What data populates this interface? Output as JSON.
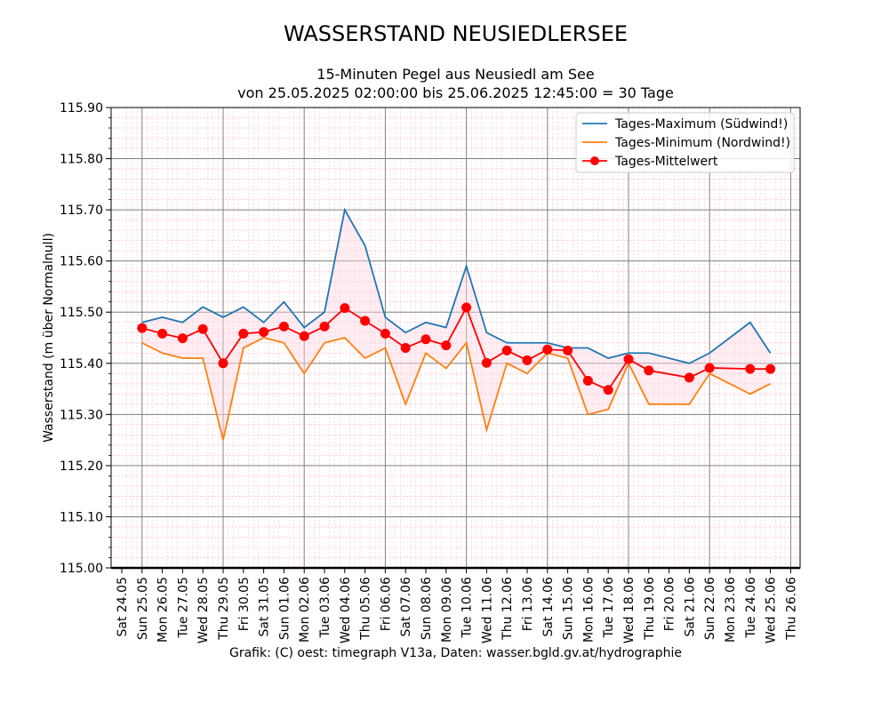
{
  "chart_data": {
    "type": "line",
    "title": "WASSERSTAND NEUSIEDLERSEE",
    "subtitle_line1": "15-Minuten Pegel aus Neusiedl am See",
    "subtitle_line2": "von 25.05.2025 02:00:00  bis 25.06.2025 12:45:00 =  30 Tage",
    "ylabel": "Wasserstand (m über Normalnull)",
    "credit": "Grafik: (C) oest: timegraph V13a,  Daten: wasser.bgld.gv.at/hydrographie",
    "ylim": [
      115.0,
      115.9
    ],
    "y_ticks": [
      "115.00",
      "115.10",
      "115.20",
      "115.30",
      "115.40",
      "115.50",
      "115.60",
      "115.70",
      "115.80",
      "115.90"
    ],
    "x_tick_labels": [
      "Sat 24.05",
      "Sun 25.05",
      "Mon 26.05",
      "Tue 27.05",
      "Wed 28.05",
      "Thu 29.05",
      "Fri 30.05",
      "Sat 31.05",
      "Sun 01.06",
      "Mon 02.06",
      "Tue 03.06",
      "Wed 04.06",
      "Thu 05.06",
      "Fri 06.06",
      "Sat 07.06",
      "Sun 08.06",
      "Mon 09.06",
      "Tue 10.06",
      "Wed 11.06",
      "Thu 12.06",
      "Fri 13.06",
      "Sat 14.06",
      "Sun 15.06",
      "Mon 16.06",
      "Tue 17.06",
      "Wed 18.06",
      "Thu 19.06",
      "Fri 20.06",
      "Sat 21.06",
      "Sun 22.06",
      "Mon 23.06",
      "Tue 24.06",
      "Wed 25.06",
      "Thu 26.06"
    ],
    "x_day_range": [
      24.05,
      26.06
    ],
    "grid": true,
    "legend_position": "top-right",
    "series": [
      {
        "name": "Tages-Maximum (Südwind!)",
        "color": "#1f77b4",
        "values": [
          115.48,
          115.49,
          115.48,
          115.51,
          115.49,
          115.51,
          115.48,
          115.52,
          115.47,
          115.5,
          115.7,
          115.63,
          115.49,
          115.46,
          115.48,
          115.47,
          115.59,
          115.46,
          115.44,
          115.44,
          115.44,
          115.43,
          115.43,
          115.41,
          115.42,
          115.42,
          115.41,
          115.4,
          115.42,
          115.45,
          115.48,
          115.42
        ]
      },
      {
        "name": "Tages-Minimum (Nordwind!)",
        "color": "#ff7f0e",
        "values": [
          115.44,
          115.42,
          115.41,
          115.41,
          115.25,
          115.43,
          115.45,
          115.44,
          115.38,
          115.44,
          115.45,
          115.41,
          115.43,
          115.32,
          115.42,
          115.39,
          115.44,
          115.27,
          115.4,
          115.38,
          115.42,
          115.41,
          115.3,
          115.31,
          115.4,
          115.32,
          115.32,
          115.32,
          115.38,
          115.36,
          115.34,
          115.36
        ]
      },
      {
        "name": "Tages-Mittelwert",
        "color": "#ff0000",
        "points": [
          {
            "x": "Sun 25.05",
            "y": 115.469
          },
          {
            "x": "Mon 26.05",
            "y": 115.458
          },
          {
            "x": "Tue 27.05",
            "y": 115.449
          },
          {
            "x": "Wed 28.05",
            "y": 115.467
          },
          {
            "x": "Thu 29.05",
            "y": 115.4
          },
          {
            "x": "Fri 30.05",
            "y": 115.458
          },
          {
            "x": "Sat 31.05",
            "y": 115.461
          },
          {
            "x": "Sun 01.06",
            "y": 115.472
          },
          {
            "x": "Mon 02.06",
            "y": 115.453
          },
          {
            "x": "Tue 03.06",
            "y": 115.472
          },
          {
            "x": "Wed 04.06",
            "y": 115.508
          },
          {
            "x": "Thu 05.06",
            "y": 115.483
          },
          {
            "x": "Fri 06.06",
            "y": 115.458
          },
          {
            "x": "Sat 07.06",
            "y": 115.43
          },
          {
            "x": "Sun 08.06",
            "y": 115.447
          },
          {
            "x": "Mon 09.06",
            "y": 115.435
          },
          {
            "x": "Tue 10.06",
            "y": 115.509
          },
          {
            "x": "Wed 11.06",
            "y": 115.401
          },
          {
            "x": "Thu 12.06",
            "y": 115.425
          },
          {
            "x": "Fri 13.06",
            "y": 115.406
          },
          {
            "x": "Sat 14.06",
            "y": 115.427
          },
          {
            "x": "Sun 15.06",
            "y": 115.425
          },
          {
            "x": "Mon 16.06",
            "y": 115.366
          },
          {
            "x": "Tue 17.06",
            "y": 115.348
          },
          {
            "x": "Wed 18.06",
            "y": 115.408
          },
          {
            "x": "Thu 19.06",
            "y": 115.386
          },
          {
            "x": "Sat 21.06",
            "y": 115.372
          },
          {
            "x": "Sun 22.06",
            "y": 115.391
          },
          {
            "x": "Tue 24.06",
            "y": 115.389
          },
          {
            "x": "Wed 25.06",
            "y": 115.389
          }
        ]
      }
    ]
  }
}
